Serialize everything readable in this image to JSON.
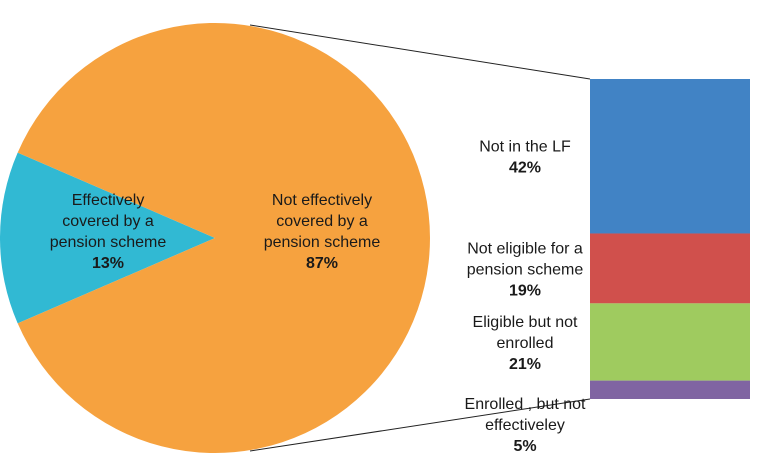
{
  "chart_data": {
    "type": "pie",
    "subtype": "bar-of-pie",
    "title": "",
    "pie": {
      "slices": [
        {
          "label_lines": [
            "Effectively",
            "covered by a",
            "pension scheme"
          ],
          "value": 13,
          "value_label": "13%",
          "color": "#31b9d3"
        },
        {
          "label_lines": [
            "Not effectively",
            "covered by a",
            "pension scheme"
          ],
          "value": 87,
          "value_label": "87%",
          "color": "#f6a23f"
        }
      ]
    },
    "bar": {
      "breakdown_of": "Not effectively covered by a pension scheme",
      "segments": [
        {
          "label_lines": [
            "Not in the LF"
          ],
          "value": 42,
          "value_label": "42%",
          "color": "#4183c5"
        },
        {
          "label_lines": [
            "Not eligible for a",
            "pension scheme"
          ],
          "value": 19,
          "value_label": "19%",
          "color": "#d0504c"
        },
        {
          "label_lines": [
            "Eligible but not",
            "enrolled"
          ],
          "value": 21,
          "value_label": "21%",
          "color": "#9fcb5f"
        },
        {
          "label_lines": [
            "Enrolled , but not",
            "effectiveley"
          ],
          "value": 5,
          "value_label": "5%",
          "color": "#8064a2"
        }
      ]
    },
    "connector_color": "#222222"
  }
}
